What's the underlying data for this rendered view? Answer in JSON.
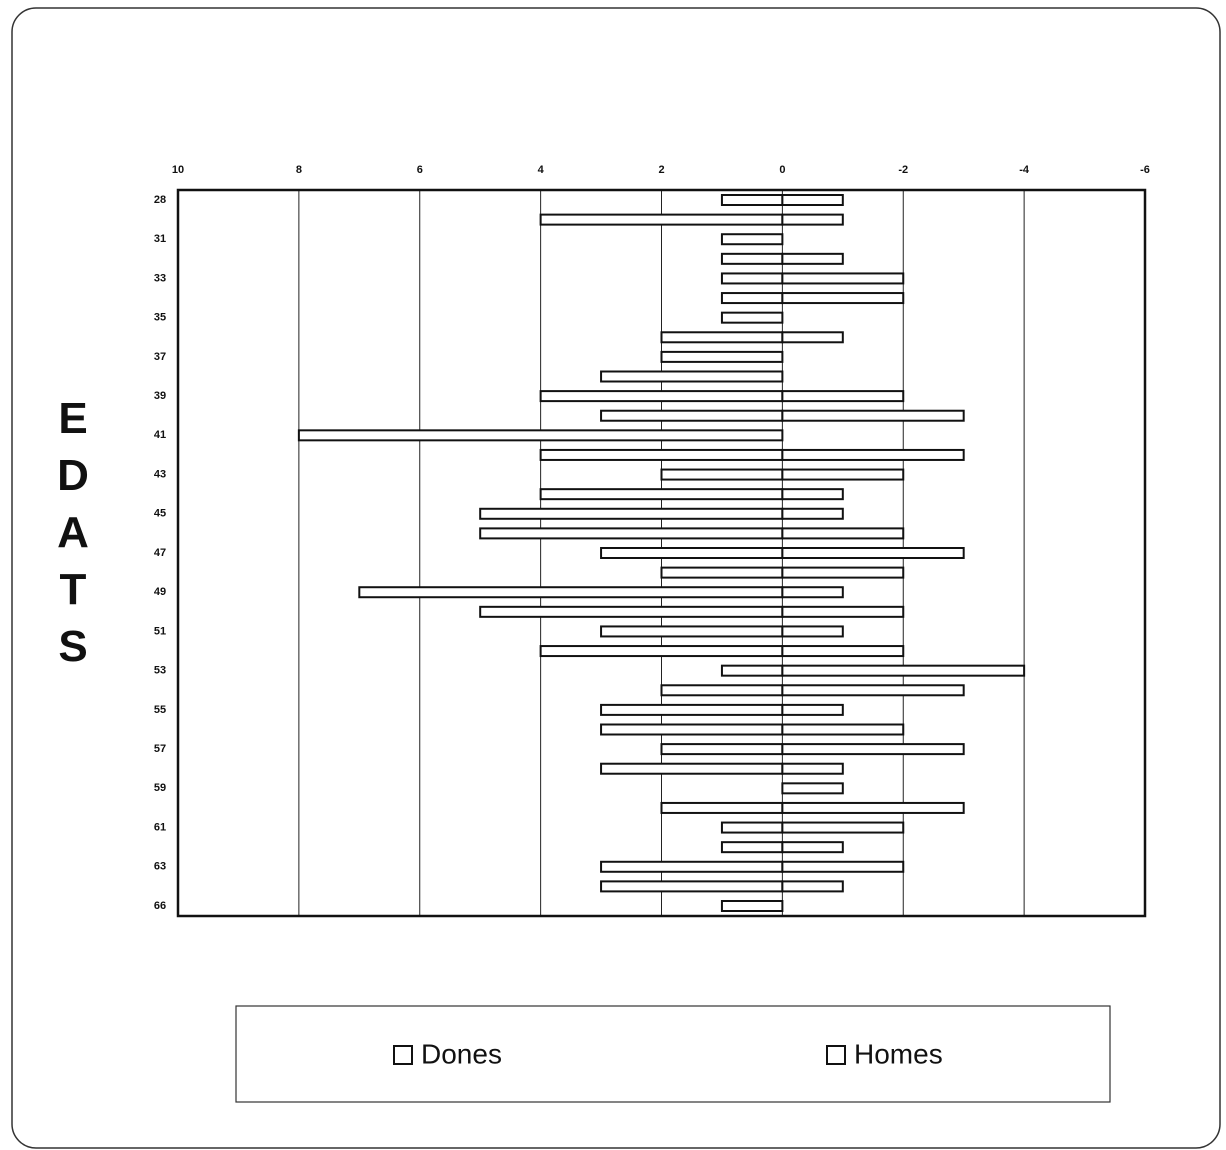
{
  "chart_data": {
    "type": "bar",
    "orientation": "horizontal-diverging",
    "y_axis_label": "EDATS",
    "categories": [
      "28",
      null,
      "31",
      null,
      "33",
      null,
      "35",
      null,
      "37",
      null,
      "39",
      null,
      "41",
      null,
      "43",
      null,
      "45",
      null,
      "47",
      null,
      "49",
      null,
      "51",
      null,
      "53",
      null,
      "55",
      null,
      "57",
      null,
      "59",
      null,
      "61",
      null,
      "63",
      null,
      "66"
    ],
    "series": [
      {
        "name": "Dones",
        "color": "#ffffff",
        "values": [
          1,
          4,
          1,
          1,
          1,
          1,
          1,
          2,
          2,
          3,
          4,
          3,
          8,
          4,
          2,
          4,
          5,
          5,
          3,
          2,
          7,
          5,
          3,
          4,
          1,
          2,
          3,
          3,
          2,
          3,
          0,
          2,
          1,
          1,
          3,
          3,
          1
        ]
      },
      {
        "name": "Homes",
        "color": "#ffffff",
        "values": [
          -1,
          -1,
          0,
          -1,
          -2,
          -2,
          0,
          -1,
          0,
          0,
          -2,
          -3,
          0,
          -3,
          -2,
          -1,
          -1,
          -2,
          -3,
          -2,
          -1,
          -2,
          -1,
          -2,
          -4,
          -3,
          -1,
          -2,
          -3,
          -1,
          -1,
          -3,
          -2,
          -1,
          -2,
          -1,
          0
        ]
      }
    ],
    "xlim": [
      10,
      -6
    ],
    "xticks": [
      10,
      8,
      6,
      4,
      2,
      0,
      -2,
      -4,
      -6
    ],
    "grid": true,
    "legend": "bottom"
  }
}
